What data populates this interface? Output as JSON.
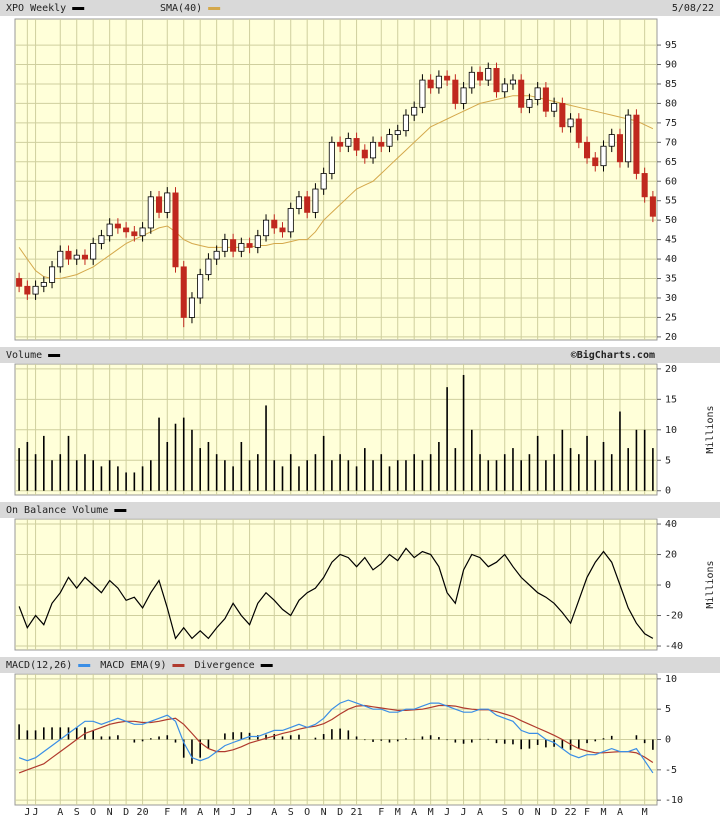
{
  "chart_data": [
    {
      "type": "candlestick",
      "title": "XPO Weekly",
      "date": "5/08/22",
      "open": [
        35,
        33,
        31,
        33,
        34,
        38,
        42,
        40,
        41,
        40,
        44,
        46,
        49,
        48,
        47,
        46,
        48,
        56,
        52,
        57,
        38,
        25,
        30,
        36,
        40,
        42,
        45,
        42,
        44,
        43,
        46,
        50,
        48,
        47,
        53,
        56,
        52,
        58,
        62,
        70,
        69,
        71,
        68,
        66,
        70,
        69,
        72,
        73,
        77,
        79,
        86,
        84,
        87,
        86,
        80,
        84,
        88,
        86,
        89,
        83,
        85,
        86,
        79,
        81,
        84,
        78,
        80,
        74,
        76,
        70,
        66,
        64,
        69,
        72,
        65,
        77,
        62,
        56
      ],
      "high": [
        36.5,
        34.5,
        34.5,
        35.5,
        39.5,
        43.5,
        43.5,
        42.5,
        42.5,
        45.5,
        47.5,
        50.5,
        50.5,
        49.5,
        48.5,
        49.5,
        57.5,
        57.5,
        58.5,
        58.5,
        39.5,
        31.5,
        37.5,
        41.5,
        43.5,
        46.5,
        46.5,
        45.5,
        45.5,
        47.5,
        51.5,
        51.5,
        49.5,
        54.5,
        57.5,
        57.5,
        59.5,
        63.5,
        71.5,
        71.5,
        72.5,
        72.5,
        69.5,
        71.5,
        71.5,
        73.5,
        74.5,
        78.5,
        80.5,
        87.5,
        87.5,
        88.5,
        88.5,
        87.5,
        85.5,
        89.5,
        89.5,
        90.5,
        90.5,
        86.5,
        87.5,
        87.5,
        82.5,
        85.5,
        85.5,
        81.5,
        81.5,
        77.5,
        77.5,
        71.5,
        67.5,
        70.5,
        73.5,
        73.5,
        78.5,
        78.5,
        63.5,
        57.5
      ],
      "low": [
        31.5,
        29.5,
        29.5,
        31.5,
        32.5,
        36.5,
        38.5,
        38.5,
        38.5,
        38.5,
        42.5,
        44.5,
        46.5,
        45.5,
        44.5,
        44.5,
        46.5,
        50.5,
        50.5,
        36.5,
        22.5,
        23.5,
        28.5,
        34.5,
        38.5,
        40.5,
        40.5,
        40.5,
        41.5,
        41.5,
        44.5,
        46.5,
        45.5,
        45.5,
        51.5,
        50.5,
        50.5,
        56.5,
        60.5,
        67.5,
        67.5,
        66.5,
        64.5,
        64.5,
        67.5,
        67.5,
        70.5,
        71.5,
        75.5,
        77.5,
        82.5,
        82.5,
        84.5,
        78.5,
        78.5,
        82.5,
        84.5,
        84.5,
        81.5,
        81.5,
        83.5,
        77.5,
        77.5,
        79.5,
        76.5,
        76.5,
        72.5,
        72.5,
        68.5,
        64.5,
        62.5,
        62.5,
        67.5,
        63.5,
        63.5,
        60.5,
        54.5,
        49.5
      ],
      "close": [
        33,
        31,
        33,
        34,
        38,
        42,
        40,
        41,
        40,
        44,
        46,
        49,
        48,
        47,
        46,
        48,
        56,
        52,
        57,
        38,
        25,
        30,
        36,
        40,
        42,
        45,
        42,
        44,
        43,
        46,
        50,
        48,
        47,
        53,
        56,
        52,
        58,
        62,
        70,
        69,
        71,
        68,
        66,
        70,
        69,
        72,
        73,
        77,
        79,
        86,
        84,
        87,
        86,
        80,
        84,
        88,
        86,
        89,
        83,
        85,
        86,
        79,
        81,
        84,
        78,
        80,
        74,
        76,
        70,
        66,
        64,
        69,
        72,
        65,
        77,
        62,
        56,
        51
      ],
      "color_up": "#000000",
      "color_down": "#c0281e",
      "overlay": {
        "name": "SMA(40)",
        "color": "#d4a84b",
        "values": [
          43,
          40,
          37,
          35.5,
          35,
          35,
          35.5,
          36,
          37,
          38,
          39.5,
          41,
          42.5,
          44,
          45,
          46,
          47,
          48,
          48.5,
          47,
          45,
          44,
          43.5,
          43,
          43,
          43,
          43,
          43,
          43,
          43.5,
          43.5,
          44,
          44,
          44.5,
          45,
          45,
          47,
          50,
          52,
          54,
          56,
          58,
          59,
          60,
          62,
          64,
          66,
          68,
          70,
          72,
          74,
          75,
          76,
          77,
          78,
          79,
          80,
          80.5,
          81,
          81.5,
          82,
          82,
          82,
          81.5,
          81,
          80.5,
          80,
          79.5,
          79,
          78.5,
          78,
          77.5,
          77,
          76.5,
          76,
          75.5,
          74.5,
          73.5
        ]
      },
      "ylim": [
        19.2,
        101.7
      ],
      "yticks": [
        20,
        25,
        30,
        35,
        40,
        45,
        50,
        55,
        60,
        65,
        70,
        75,
        80,
        85,
        90,
        95
      ],
      "grid": true
    },
    {
      "type": "bar",
      "title": "Volume",
      "credit": "©BigCharts.com",
      "axis_label": "Millions",
      "color": "#000000",
      "values": [
        7,
        8,
        6,
        9,
        5,
        6,
        9,
        5,
        6,
        5,
        4,
        5,
        4,
        3,
        3,
        4,
        5,
        12,
        8,
        11,
        12,
        10,
        7,
        8,
        6,
        5,
        4,
        8,
        5,
        6,
        14,
        5,
        4,
        6,
        4,
        5,
        6,
        9,
        5,
        6,
        5,
        4,
        7,
        5,
        6,
        4,
        5,
        5,
        6,
        5,
        6,
        8,
        17,
        7,
        19,
        10,
        6,
        5,
        5,
        6,
        7,
        5,
        6,
        9,
        5,
        6,
        10,
        7,
        6,
        9,
        5,
        8,
        6,
        13,
        7,
        10,
        10,
        7
      ],
      "ylim": [
        -0.7,
        20.8
      ],
      "yticks": [
        0,
        5,
        10,
        15,
        20
      ],
      "grid": true
    },
    {
      "type": "line",
      "title": "On Balance Volume",
      "axis_label": "Millions",
      "color": "#000000",
      "values": [
        -14,
        -28,
        -20,
        -26,
        -12,
        -5,
        5,
        -2,
        5,
        0,
        -5,
        3,
        -2,
        -10,
        -8,
        -15,
        -5,
        3,
        -15,
        -35,
        -28,
        -35,
        -30,
        -35,
        -28,
        -22,
        -12,
        -20,
        -26,
        -12,
        -5,
        -10,
        -16,
        -20,
        -10,
        -5,
        -2,
        5,
        15,
        20,
        18,
        12,
        18,
        10,
        14,
        20,
        16,
        24,
        18,
        22,
        20,
        12,
        -5,
        -12,
        10,
        20,
        18,
        12,
        15,
        20,
        12,
        5,
        0,
        -5,
        -8,
        -12,
        -18,
        -25,
        -10,
        5,
        15,
        22,
        15,
        0,
        -15,
        -25,
        -32,
        -35
      ],
      "ylim": [
        -42.6,
        43.3
      ],
      "yticks": [
        -40,
        -20,
        0,
        20,
        40
      ],
      "grid": true
    },
    {
      "type": "macd",
      "categories": [
        null,
        "J",
        "J",
        null,
        null,
        "A",
        null,
        "S",
        null,
        "O",
        null,
        "N",
        null,
        "D",
        null,
        "20",
        null,
        null,
        "F",
        null,
        "M",
        null,
        "A",
        null,
        "M",
        null,
        "J",
        null,
        "J",
        null,
        null,
        "A",
        null,
        "S",
        null,
        "O",
        null,
        "N",
        null,
        "D",
        null,
        "21",
        null,
        null,
        "F",
        null,
        "M",
        null,
        "A",
        null,
        "M",
        null,
        "J",
        null,
        "J",
        null,
        "A",
        null,
        null,
        "S",
        null,
        "O",
        null,
        "N",
        null,
        "D",
        null,
        "22",
        null,
        "F",
        null,
        "M",
        null,
        "A",
        null,
        null,
        "M",
        null
      ],
      "series": [
        {
          "name": "MACD(12,26)",
          "color": "#3a8ee6",
          "values": [
            -3,
            -3.5,
            -3,
            -2,
            -1,
            0,
            1,
            2,
            3,
            3,
            2.5,
            3,
            3.5,
            3,
            2.5,
            2.5,
            3,
            3.5,
            4,
            3,
            -0.5,
            -3,
            -3.5,
            -3,
            -2,
            -1,
            -0.5,
            0,
            0.5,
            0.5,
            1,
            1.5,
            1.5,
            2,
            2.5,
            2,
            2.5,
            3.5,
            5,
            6,
            6.5,
            6,
            5.5,
            5,
            5,
            4.5,
            4.5,
            5,
            5,
            5.5,
            6,
            6,
            5.5,
            5,
            4.5,
            4.5,
            5,
            5,
            4,
            3.5,
            3,
            1.5,
            1,
            1,
            0,
            -0.5,
            -1.5,
            -2.5,
            -3,
            -2.5,
            -2.5,
            -2,
            -1.5,
            -2,
            -2,
            -1.5,
            -3.5,
            -5.5
          ]
        },
        {
          "name": "MACD EMA(9)",
          "color": "#b03a2e",
          "values": [
            -5.5,
            -5,
            -4.5,
            -4,
            -3,
            -2,
            -1,
            0,
            1,
            1.5,
            2,
            2.5,
            2.8,
            3,
            3,
            2.8,
            2.8,
            3,
            3.3,
            3.5,
            2.5,
            1,
            -0.5,
            -1.5,
            -2,
            -2,
            -1.7,
            -1.2,
            -0.6,
            -0.2,
            0.2,
            0.6,
            1,
            1.3,
            1.7,
            2,
            2.2,
            2.6,
            3.3,
            4.2,
            5,
            5.5,
            5.6,
            5.4,
            5.2,
            5,
            4.8,
            4.8,
            4.9,
            5,
            5.3,
            5.6,
            5.6,
            5.5,
            5.2,
            5,
            4.9,
            4.9,
            4.6,
            4.2,
            3.8,
            3.1,
            2.5,
            1.9,
            1.3,
            0.7,
            0,
            -0.8,
            -1.5,
            -1.9,
            -2.2,
            -2.2,
            -2.1,
            -2,
            -2,
            -2.2,
            -2.9,
            -3.8
          ]
        },
        {
          "name": "Divergence",
          "color": "#000000",
          "values": [
            2.5,
            1.5,
            1.5,
            2,
            2,
            2,
            2,
            2,
            2,
            1.5,
            0.5,
            0.5,
            0.7,
            0,
            -0.5,
            -0.3,
            0.2,
            0.5,
            0.7,
            -0.5,
            -3,
            -4,
            -3,
            -1.5,
            0,
            1,
            1.2,
            1.2,
            1.1,
            0.7,
            0.8,
            0.9,
            0.5,
            0.7,
            0.8,
            0,
            0.3,
            0.9,
            1.7,
            1.8,
            1.5,
            0.5,
            -0.1,
            -0.4,
            -0.2,
            -0.5,
            -0.3,
            0.2,
            0.1,
            0.5,
            0.7,
            0.4,
            -0.1,
            -0.5,
            -0.7,
            -0.5,
            0.1,
            0.1,
            -0.6,
            -0.7,
            -0.8,
            -1.6,
            -1.5,
            -0.9,
            -1.3,
            -1.2,
            -1.5,
            -1.7,
            -1.5,
            -0.6,
            -0.3,
            0.2,
            0.6,
            0,
            0,
            0.7,
            -0.6,
            -1.7
          ]
        }
      ],
      "ylim": [
        -10.8,
        10.8
      ],
      "yticks": [
        -10,
        -5,
        0,
        5,
        10
      ],
      "grid": true
    }
  ]
}
